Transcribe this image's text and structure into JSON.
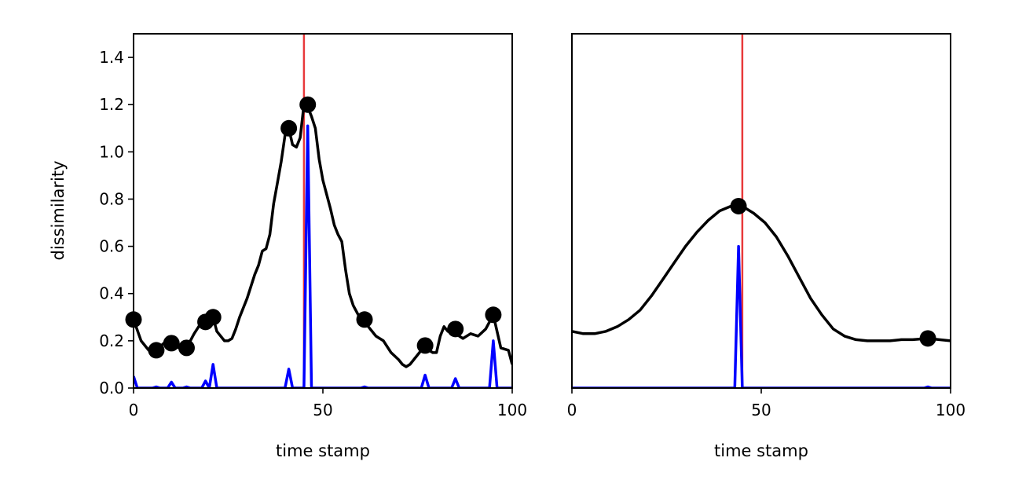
{
  "chart_data": [
    {
      "type": "line",
      "xlabel": "time stamp",
      "ylabel": "dissimilarity",
      "xlim": [
        0,
        100
      ],
      "ylim": [
        0,
        1.5
      ],
      "xticks": [
        "0",
        "50",
        "100"
      ],
      "yticks": [
        "0.0",
        "0.2",
        "0.4",
        "0.6",
        "0.8",
        "1.0",
        "1.2",
        "1.4"
      ],
      "grid": false,
      "vline": {
        "x": 45,
        "color": "#e8393b"
      },
      "series": [
        {
          "color": "#000000",
          "x": [
            0,
            2,
            4,
            6,
            8,
            10,
            12,
            14,
            16,
            18,
            19,
            21,
            22,
            24,
            25,
            26,
            27,
            28,
            30,
            32,
            33,
            34,
            35,
            36,
            37,
            38,
            39,
            40,
            41,
            42,
            43,
            44,
            45,
            46,
            47,
            48,
            49,
            50,
            51,
            52,
            53,
            54,
            55,
            56,
            57,
            58,
            59,
            60,
            61,
            62,
            64,
            66,
            68,
            70,
            71,
            72,
            73,
            74,
            75,
            77,
            78,
            79,
            80,
            81,
            82,
            83,
            85,
            87,
            89,
            91,
            93,
            95,
            96,
            97,
            99,
            100
          ],
          "y": [
            0.29,
            0.2,
            0.16,
            0.16,
            0.19,
            0.19,
            0.17,
            0.17,
            0.23,
            0.28,
            0.3,
            0.3,
            0.24,
            0.2,
            0.2,
            0.21,
            0.25,
            0.3,
            0.38,
            0.48,
            0.52,
            0.58,
            0.59,
            0.65,
            0.78,
            0.87,
            0.96,
            1.07,
            1.1,
            1.03,
            1.02,
            1.06,
            1.2,
            1.19,
            1.15,
            1.1,
            0.97,
            0.88,
            0.82,
            0.76,
            0.69,
            0.65,
            0.62,
            0.5,
            0.4,
            0.35,
            0.32,
            0.29,
            0.29,
            0.26,
            0.22,
            0.2,
            0.15,
            0.12,
            0.1,
            0.09,
            0.1,
            0.12,
            0.14,
            0.18,
            0.16,
            0.15,
            0.15,
            0.22,
            0.26,
            0.24,
            0.23,
            0.21,
            0.23,
            0.22,
            0.25,
            0.31,
            0.24,
            0.17,
            0.16,
            0.1
          ]
        },
        {
          "color": "#0000ff",
          "x": [
            0,
            1,
            2,
            5,
            6,
            7,
            9,
            10,
            11,
            13,
            14,
            15,
            18,
            19,
            20,
            21,
            22,
            40,
            41,
            42,
            45,
            46,
            47,
            48,
            60,
            61,
            62,
            76,
            77,
            78,
            84,
            85,
            86,
            94,
            95,
            96,
            100
          ],
          "y": [
            0.05,
            0,
            0,
            0,
            0.005,
            0,
            0,
            0.025,
            0,
            0,
            0.005,
            0,
            0,
            0.03,
            0,
            0.1,
            0,
            0,
            0.08,
            0,
            0,
            1.11,
            0,
            0,
            0,
            0.005,
            0,
            0,
            0.055,
            0,
            0,
            0.04,
            0,
            0,
            0.2,
            0,
            0
          ]
        }
      ],
      "markers": {
        "color": "#000000",
        "x": [
          0,
          6,
          10,
          14,
          19,
          21,
          41,
          46,
          61,
          77,
          85,
          95
        ],
        "y": [
          0.29,
          0.16,
          0.19,
          0.17,
          0.28,
          0.3,
          1.1,
          1.2,
          0.29,
          0.18,
          0.25,
          0.31
        ]
      }
    },
    {
      "type": "line",
      "xlabel": "time stamp",
      "ylabel": "",
      "xlim": [
        0,
        100
      ],
      "ylim": [
        0,
        1.5
      ],
      "xticks": [
        "0",
        "50",
        "100"
      ],
      "yticks": [],
      "grid": false,
      "vline": {
        "x": 45,
        "color": "#e8393b"
      },
      "series": [
        {
          "color": "#000000",
          "x": [
            0,
            3,
            6,
            9,
            12,
            15,
            18,
            21,
            24,
            27,
            30,
            33,
            36,
            39,
            42,
            44,
            46,
            48,
            51,
            54,
            57,
            60,
            63,
            66,
            69,
            72,
            75,
            78,
            81,
            84,
            87,
            90,
            94,
            97,
            100
          ],
          "y": [
            0.24,
            0.23,
            0.23,
            0.24,
            0.26,
            0.29,
            0.33,
            0.39,
            0.46,
            0.53,
            0.6,
            0.66,
            0.71,
            0.75,
            0.77,
            0.77,
            0.76,
            0.74,
            0.7,
            0.64,
            0.56,
            0.47,
            0.38,
            0.31,
            0.25,
            0.22,
            0.205,
            0.2,
            0.2,
            0.2,
            0.205,
            0.205,
            0.21,
            0.205,
            0.2
          ]
        },
        {
          "color": "#0000ff",
          "x": [
            0,
            43,
            44,
            45,
            93,
            94,
            95,
            100
          ],
          "y": [
            0,
            0,
            0.6,
            0,
            0,
            0.005,
            0,
            0
          ]
        }
      ],
      "markers": {
        "color": "#000000",
        "x": [
          44,
          94
        ],
        "y": [
          0.77,
          0.21
        ]
      }
    }
  ]
}
